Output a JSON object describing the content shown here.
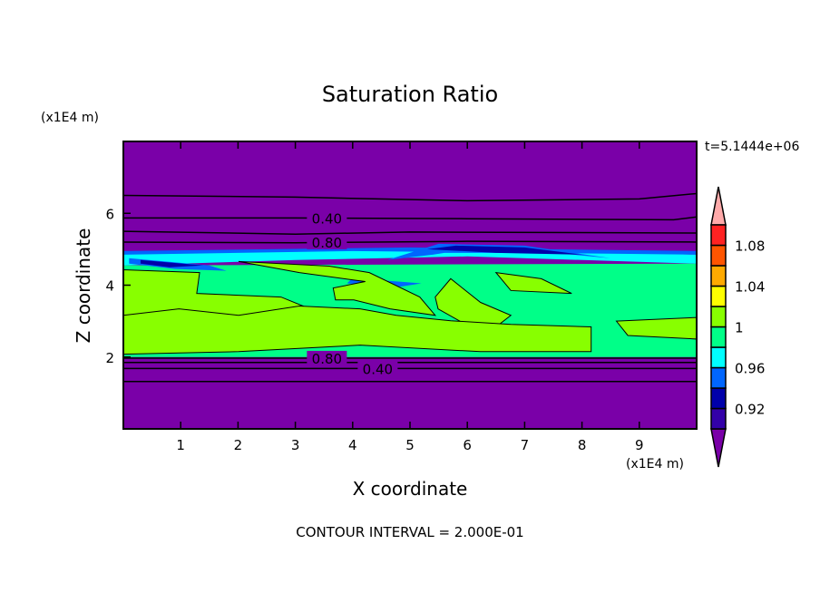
{
  "chart_data": {
    "type": "contour",
    "title": "Saturation Ratio",
    "xlabel": "X coordinate",
    "ylabel": "Z coordinate",
    "x_unit": "(x1E4 m)",
    "y_unit": "(x1E4 m)",
    "xlim": [
      0,
      10
    ],
    "ylim": [
      0,
      8
    ],
    "x_ticks": [
      "1",
      "2",
      "3",
      "4",
      "5",
      "6",
      "7",
      "8",
      "9"
    ],
    "y_ticks": [
      "2",
      "4",
      "6"
    ],
    "time_label": "t=5.1444e+06",
    "footer": "CONTOUR INTERVAL = 2.000E-01",
    "background_color": "#7a00a8",
    "colorbar": {
      "levels": [
        0.9,
        0.92,
        0.94,
        0.96,
        0.98,
        1.0,
        1.02,
        1.04,
        1.06,
        1.08,
        1.1
      ],
      "colors": [
        "#3300a8",
        "#0000aa",
        "#0066ff",
        "#00ffff",
        "#00ff88",
        "#88ff00",
        "#ffff00",
        "#ffaa00",
        "#ff5500",
        "#ff2222"
      ],
      "under_color": "#7a00a8",
      "over_color": "#ffaaaa",
      "tick_labels": [
        {
          "value": 0.92,
          "label": "0.92"
        },
        {
          "value": 0.96,
          "label": "0.96"
        },
        {
          "value": 1.0,
          "label": "1"
        },
        {
          "value": 1.04,
          "label": "1.04"
        },
        {
          "value": 1.08,
          "label": "1.08"
        }
      ]
    },
    "regions": [
      {
        "color": "#00ff88",
        "points": [
          [
            0,
            2.0
          ],
          [
            10,
            2.0
          ],
          [
            10,
            4.6
          ],
          [
            0,
            4.55
          ]
        ]
      },
      {
        "color": "#00ffff",
        "points": [
          [
            0,
            4.55
          ],
          [
            3,
            4.7
          ],
          [
            6,
            4.8
          ],
          [
            10,
            4.6
          ],
          [
            10,
            4.85
          ],
          [
            6,
            5.0
          ],
          [
            3,
            4.95
          ],
          [
            0,
            4.9
          ]
        ]
      },
      {
        "color": "#0066ff",
        "points": [
          [
            0,
            4.85
          ],
          [
            4,
            4.95
          ],
          [
            10,
            4.85
          ],
          [
            10,
            4.95
          ],
          [
            5,
            5.05
          ],
          [
            0,
            4.95
          ]
        ]
      },
      {
        "color": "#0066ff",
        "points": [
          [
            0.1,
            4.75
          ],
          [
            1.5,
            4.55
          ],
          [
            1.8,
            4.4
          ],
          [
            0.9,
            4.45
          ],
          [
            0.1,
            4.6
          ]
        ]
      },
      {
        "color": "#0000aa",
        "points": [
          [
            0.3,
            4.7
          ],
          [
            1.4,
            4.55
          ],
          [
            0.8,
            4.5
          ],
          [
            0.3,
            4.6
          ]
        ]
      },
      {
        "color": "#0066ff",
        "points": [
          [
            4.6,
            4.7
          ],
          [
            5.4,
            4.85
          ],
          [
            5.6,
            4.9
          ],
          [
            7.5,
            4.9
          ],
          [
            8.5,
            4.75
          ],
          [
            7,
            5.1
          ],
          [
            5.5,
            5.15
          ]
        ]
      },
      {
        "color": "#0000aa",
        "points": [
          [
            5.3,
            5.0
          ],
          [
            6.5,
            4.9
          ],
          [
            8.0,
            4.85
          ],
          [
            7.0,
            5.05
          ],
          [
            5.8,
            5.1
          ]
        ]
      },
      {
        "color": "#0066ff",
        "points": [
          [
            4.0,
            4.2
          ],
          [
            5.2,
            4.05
          ],
          [
            4.8,
            3.95
          ],
          [
            3.9,
            4.05
          ]
        ]
      },
      {
        "color": "#88ff00",
        "points": [
          [
            0,
            4.43
          ],
          [
            1.33,
            4.35
          ],
          [
            1.28,
            3.77
          ],
          [
            2.75,
            3.67
          ],
          [
            3.18,
            3.39
          ],
          [
            2.23,
            3.17
          ],
          [
            0.97,
            3.01
          ],
          [
            0,
            2.91
          ]
        ]
      },
      {
        "color": "#88ff00",
        "points": [
          [
            2.01,
            4.66
          ],
          [
            3.59,
            4.53
          ],
          [
            4.29,
            4.35
          ],
          [
            5.17,
            3.67
          ],
          [
            5.44,
            3.16
          ],
          [
            4.65,
            3.34
          ],
          [
            4.02,
            3.59
          ],
          [
            3.7,
            3.59
          ],
          [
            3.66,
            3.92
          ],
          [
            4.22,
            4.1
          ],
          [
            3.07,
            4.35
          ]
        ]
      },
      {
        "color": "#88ff00",
        "points": [
          [
            5.44,
            3.67
          ],
          [
            5.71,
            4.18
          ],
          [
            6.23,
            3.52
          ],
          [
            6.76,
            3.16
          ],
          [
            6.5,
            2.84
          ],
          [
            5.97,
            2.91
          ],
          [
            5.49,
            3.34
          ]
        ]
      },
      {
        "color": "#88ff00",
        "points": [
          [
            6.5,
            4.35
          ],
          [
            7.29,
            4.18
          ],
          [
            7.82,
            3.77
          ],
          [
            6.76,
            3.85
          ]
        ]
      },
      {
        "color": "#88ff00",
        "points": [
          [
            0,
            3.16
          ],
          [
            0.97,
            3.34
          ],
          [
            2.01,
            3.16
          ],
          [
            3.07,
            3.42
          ],
          [
            4.13,
            3.34
          ],
          [
            4.76,
            3.16
          ],
          [
            5.71,
            3.01
          ],
          [
            6.76,
            2.91
          ],
          [
            8.16,
            2.84
          ],
          [
            8.16,
            2.15
          ],
          [
            6.23,
            2.15
          ],
          [
            4.13,
            2.33
          ],
          [
            2.01,
            2.15
          ],
          [
            0,
            2.08
          ]
        ]
      },
      {
        "color": "#88ff00",
        "points": [
          [
            8.6,
            3.0
          ],
          [
            10,
            3.1
          ],
          [
            10,
            2.5
          ],
          [
            8.8,
            2.6
          ]
        ]
      }
    ],
    "contour_lines": [
      {
        "points": [
          [
            0,
            6.5
          ],
          [
            3,
            6.45
          ],
          [
            6,
            6.35
          ],
          [
            9,
            6.4
          ],
          [
            10,
            6.55
          ]
        ]
      },
      {
        "label": "0.40",
        "label_x": 3.55,
        "points": [
          [
            0,
            5.87
          ],
          [
            3,
            5.87
          ],
          [
            6,
            5.85
          ],
          [
            9.6,
            5.82
          ],
          [
            10,
            5.9
          ]
        ]
      },
      {
        "points": [
          [
            0,
            5.5
          ],
          [
            3,
            5.42
          ],
          [
            5,
            5.48
          ],
          [
            10,
            5.45
          ]
        ]
      },
      {
        "label": "0.80",
        "label_x": 3.55,
        "points": [
          [
            0,
            5.2
          ],
          [
            3,
            5.18
          ],
          [
            6,
            5.22
          ],
          [
            10,
            5.2
          ]
        ]
      },
      {
        "label": "0.80",
        "label_x": 3.55,
        "points": [
          [
            0,
            1.97
          ],
          [
            10,
            1.97
          ]
        ]
      },
      {
        "points": [
          [
            0,
            1.85
          ],
          [
            10,
            1.85
          ]
        ]
      },
      {
        "label": "0.40",
        "label_x": 3.55,
        "points": [
          [
            0,
            1.68
          ],
          [
            10,
            1.68
          ]
        ]
      },
      {
        "points": [
          [
            0,
            1.32
          ],
          [
            10,
            1.32
          ]
        ]
      }
    ]
  }
}
